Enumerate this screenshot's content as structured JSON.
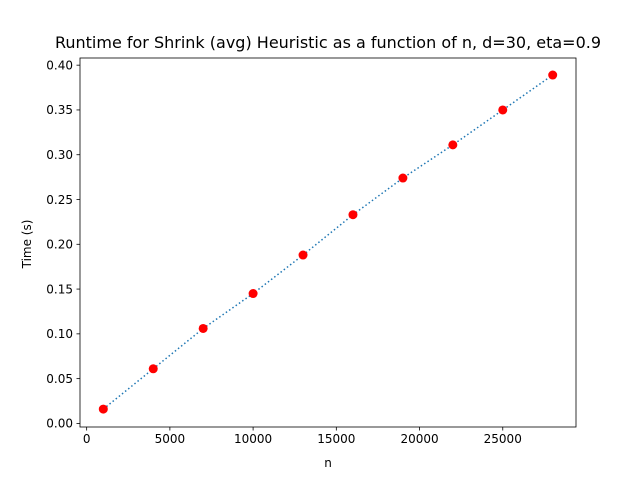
{
  "chart_data": {
    "type": "line",
    "title": "Runtime for Shrink (avg) Heuristic as a function of n, d=30, eta=0.9",
    "xlabel": "n",
    "ylabel": "Time (s)",
    "xlim": [
      -400,
      29400
    ],
    "ylim": [
      -0.004,
      0.408
    ],
    "x_ticks": [
      0,
      5000,
      10000,
      15000,
      20000,
      25000
    ],
    "y_ticks": [
      0.0,
      0.05,
      0.1,
      0.15,
      0.2,
      0.25,
      0.3,
      0.35,
      0.4
    ],
    "y_tick_decimals": 2,
    "grid": false,
    "series": [
      {
        "x": [
          1000,
          4000,
          7000,
          10000,
          13000,
          16000,
          19000,
          22000,
          25000,
          28000
        ],
        "y": [
          0.016,
          0.061,
          0.106,
          0.145,
          0.188,
          0.233,
          0.274,
          0.311,
          0.35,
          0.389
        ],
        "line_color": "#1f77b4",
        "line_style": "dotted",
        "marker_color": "#ff0000"
      }
    ]
  }
}
